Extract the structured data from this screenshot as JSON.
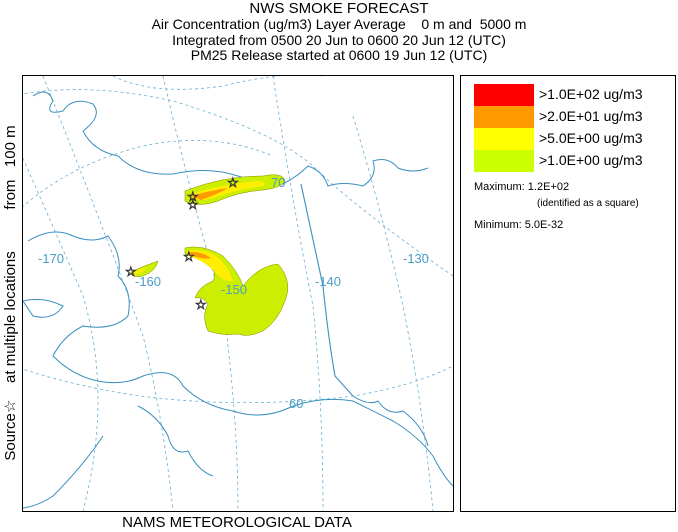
{
  "title": {
    "main": "NWS SMOKE FORECAST",
    "line1": "Air Concentration (ug/m3) Layer Average    0 m and  5000 m",
    "line2": "Integrated from 0500 20 Jun to 0600 20 Jun 12 (UTC)",
    "line3": "PM25 Release started at 0600 19 Jun 12 (UTC)"
  },
  "side_label": "Source☆    at multiple locations          from   100 m",
  "footer": "NAMS METEOROLOGICAL DATA",
  "map": {
    "graticule_labels": [
      "-170",
      "-160",
      "-150",
      "-140",
      "-130",
      "60",
      "70"
    ],
    "colors": {
      "coast": "#3a8fc0",
      "graticule": "#5aa7d0",
      "plume_outer": "#ccee00",
      "plume_mid": "#ffee00",
      "plume_inner": "#ff9900",
      "plume_core": "#ff0000"
    }
  },
  "legend": {
    "items": [
      {
        "label": ">1.0E+02 ug/m3",
        "color": "#ff0000"
      },
      {
        "label": ">2.0E+01 ug/m3",
        "color": "#ff9900"
      },
      {
        "label": ">5.0E+00 ug/m3",
        "color": "#ffff00"
      },
      {
        "label": ">1.0E+00 ug/m3",
        "color": "#ccff00"
      }
    ],
    "maximum_label": "Maximum: 1.2E+02",
    "maximum_note": "(identified as a square)",
    "minimum_label": "Minimum: 5.0E-32"
  }
}
